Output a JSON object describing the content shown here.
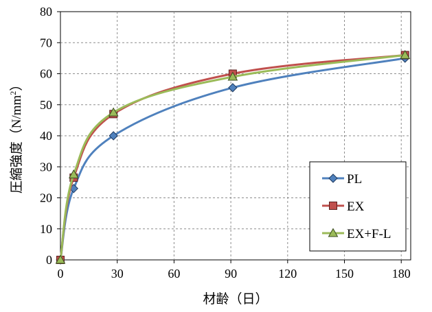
{
  "chart_data": {
    "type": "line",
    "title": "",
    "xlabel": "材齢（日）",
    "ylabel_main": "圧縮強度（N/mm",
    "ylabel_sup": "2",
    "ylabel_end": "）",
    "xlim": [
      0,
      185
    ],
    "ylim": [
      0,
      80
    ],
    "xticks": [
      0,
      30,
      60,
      90,
      120,
      150,
      180
    ],
    "yticks": [
      0,
      10,
      20,
      30,
      40,
      50,
      60,
      70,
      80
    ],
    "grid": true,
    "legend_position": "bottom-right",
    "series": [
      {
        "name": "PL",
        "color": "#4F81BD",
        "marker": "diamond",
        "x": [
          0,
          7,
          28,
          91,
          182
        ],
        "y": [
          0,
          23,
          40,
          55.5,
          65
        ]
      },
      {
        "name": "EX",
        "color": "#C0504D",
        "marker": "square",
        "x": [
          0,
          7,
          28,
          91,
          182
        ],
        "y": [
          0,
          26.5,
          47,
          60,
          66
        ]
      },
      {
        "name": "EX+F-L",
        "color": "#9BBB59",
        "marker": "triangle",
        "x": [
          0,
          7,
          28,
          91,
          182
        ],
        "y": [
          0,
          27.5,
          47.5,
          59,
          66
        ]
      }
    ]
  }
}
